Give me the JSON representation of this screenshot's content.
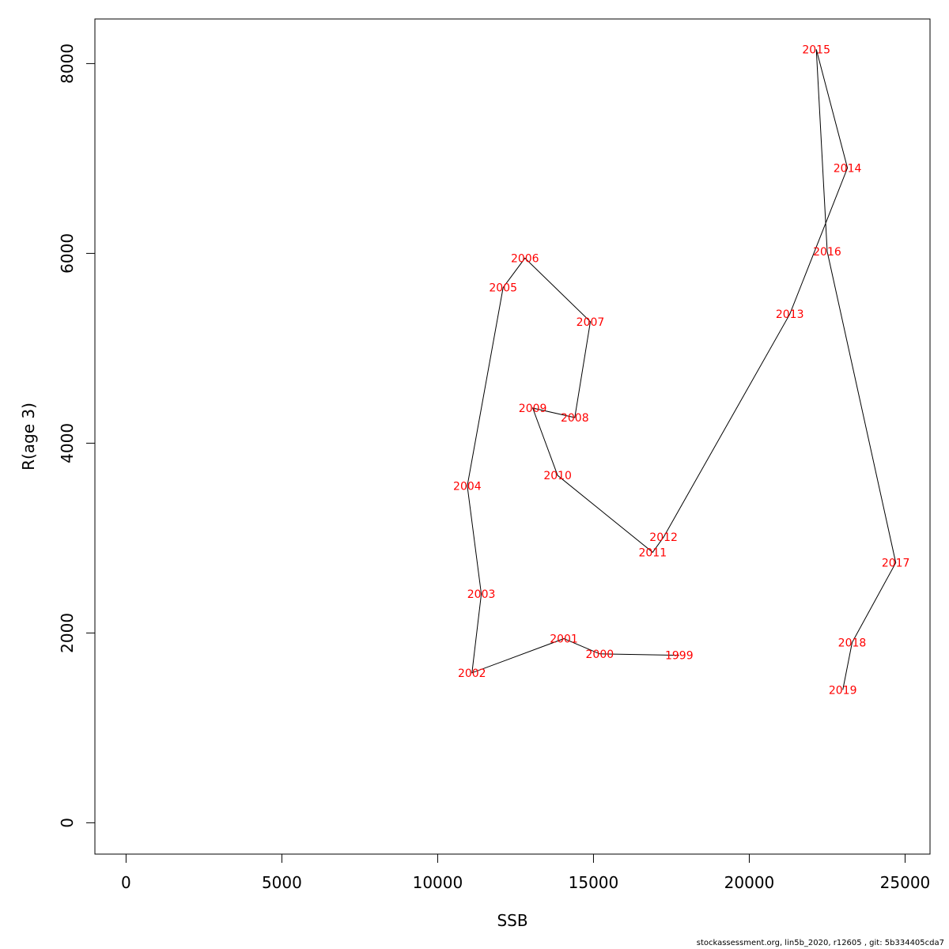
{
  "chart_data": {
    "type": "line",
    "xlabel": "SSB",
    "ylabel": "R(age 3)",
    "xlim": [
      -1000,
      25800
    ],
    "ylim": [
      -330,
      8470
    ],
    "xticks": [
      0,
      5000,
      10000,
      15000,
      20000,
      25000
    ],
    "yticks": [
      0,
      2000,
      4000,
      6000,
      8000
    ],
    "line_color": "#000000",
    "label_color": "#ff0000",
    "grid": false,
    "legend": "none",
    "points": [
      {
        "label": "1999",
        "x": 17750,
        "y": 1765
      },
      {
        "label": "2000",
        "x": 15200,
        "y": 1780
      },
      {
        "label": "2001",
        "x": 14050,
        "y": 1940
      },
      {
        "label": "2002",
        "x": 11100,
        "y": 1580
      },
      {
        "label": "2003",
        "x": 11400,
        "y": 2410
      },
      {
        "label": "2004",
        "x": 10950,
        "y": 3550
      },
      {
        "label": "2005",
        "x": 12100,
        "y": 5640
      },
      {
        "label": "2006",
        "x": 12800,
        "y": 5950
      },
      {
        "label": "2007",
        "x": 14900,
        "y": 5280
      },
      {
        "label": "2008",
        "x": 14400,
        "y": 4270
      },
      {
        "label": "2009",
        "x": 13050,
        "y": 4370
      },
      {
        "label": "2010",
        "x": 13850,
        "y": 3660
      },
      {
        "label": "2011",
        "x": 16900,
        "y": 2850
      },
      {
        "label": "2012",
        "x": 17250,
        "y": 3010
      },
      {
        "label": "2013",
        "x": 21300,
        "y": 5360
      },
      {
        "label": "2014",
        "x": 23150,
        "y": 6900
      },
      {
        "label": "2015",
        "x": 22150,
        "y": 8150
      },
      {
        "label": "2016",
        "x": 22500,
        "y": 6020
      },
      {
        "label": "2017",
        "x": 24700,
        "y": 2740
      },
      {
        "label": "2018",
        "x": 23300,
        "y": 1900
      },
      {
        "label": "2019",
        "x": 23000,
        "y": 1400
      }
    ]
  },
  "footer": "stockassessment.org, lin5b_2020, r12605 , git: 5b334405cda7"
}
